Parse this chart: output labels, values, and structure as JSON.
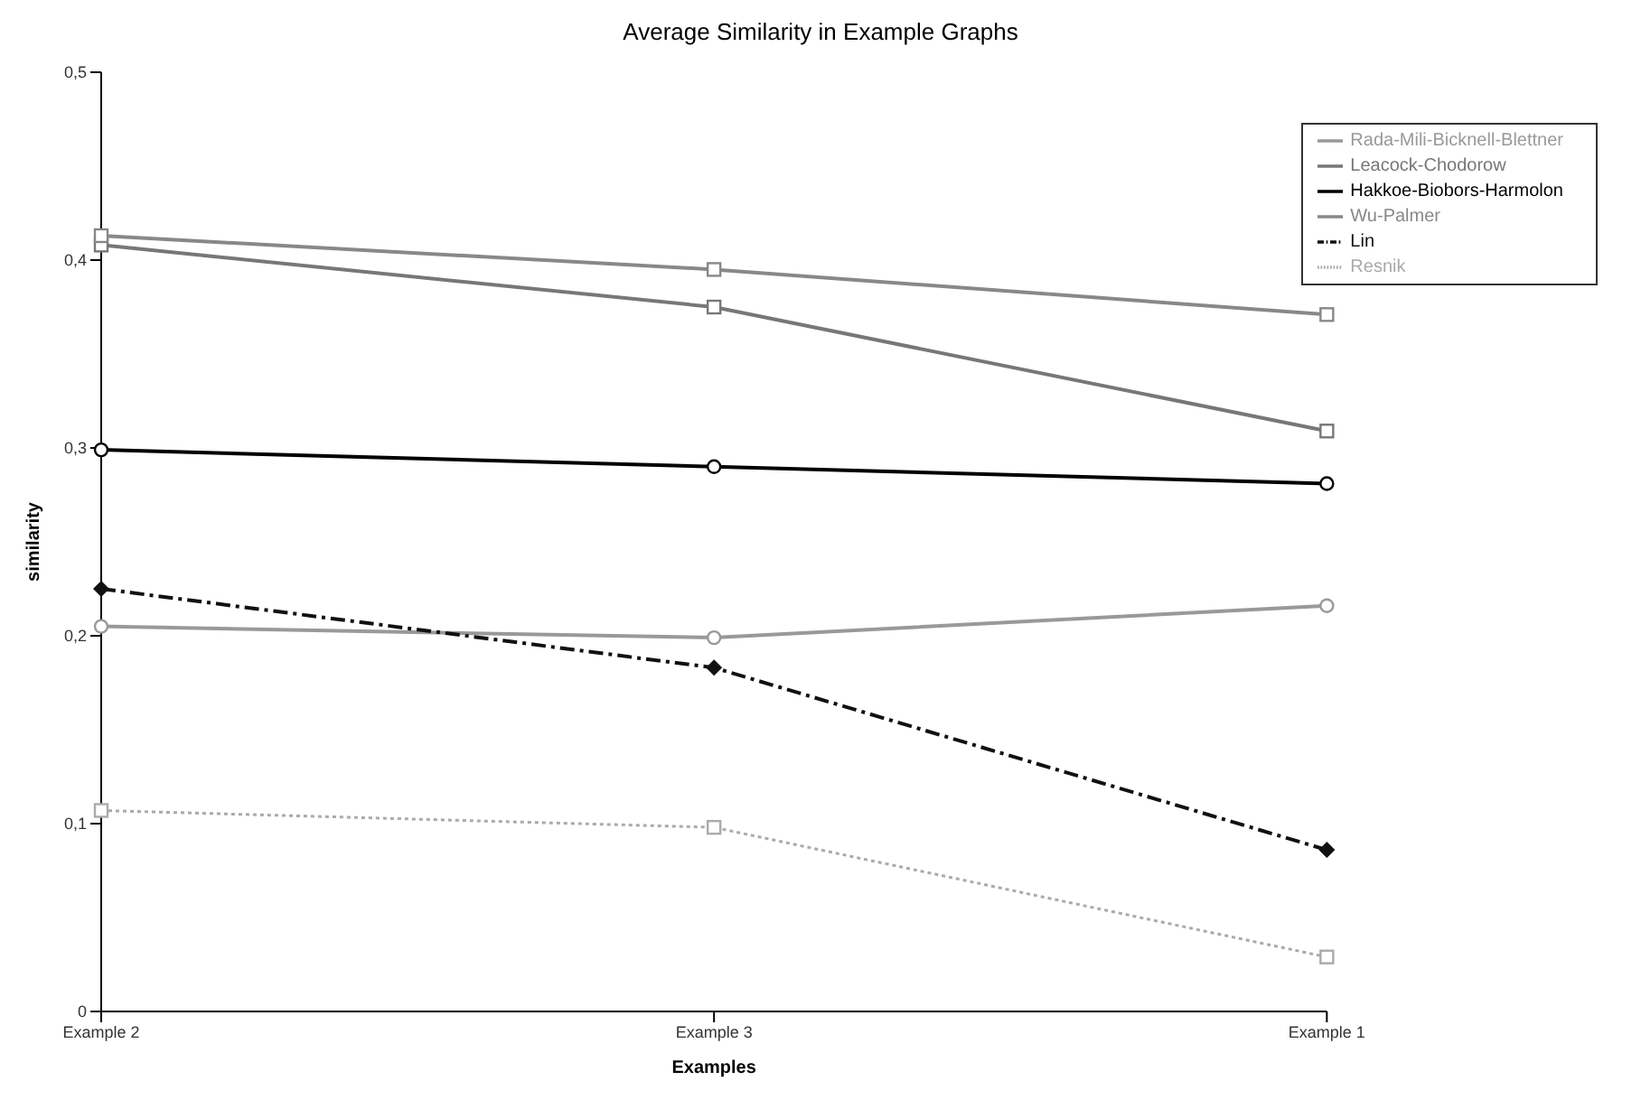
{
  "chart_data": {
    "type": "line",
    "title": "Average Similarity in Example Graphs",
    "xlabel": "Examples",
    "ylabel": "similarity",
    "categories": [
      "Example 2",
      "Example 3",
      "Example 1"
    ],
    "ylim": [
      0,
      0.5
    ],
    "yticks": [
      {
        "value": 0,
        "label": "0"
      },
      {
        "value": 0.1,
        "label": "0,1"
      },
      {
        "value": 0.2,
        "label": "0,2"
      },
      {
        "value": 0.3,
        "label": "0,3"
      },
      {
        "value": 0.4,
        "label": "0,4"
      },
      {
        "value": 0.5,
        "label": "0,5"
      }
    ],
    "grid": false,
    "legend": "top right",
    "series": [
      {
        "name": "Rada-Mili-Bicknell-Blettner",
        "color": "#999999",
        "marker": "circle",
        "line_style": "solid",
        "values": [
          0.205,
          0.199,
          0.216
        ]
      },
      {
        "name": "Leacock-Chodorow",
        "color": "#777777",
        "marker": "square",
        "line_style": "solid",
        "values": [
          0.408,
          0.375,
          0.309
        ]
      },
      {
        "name": "Hakkoe-Biobors-Harmolon",
        "color": "#000000",
        "marker": "circle",
        "line_style": "solid",
        "values": [
          0.299,
          0.29,
          0.281
        ]
      },
      {
        "name": "Wu-Palmer",
        "color": "#888888",
        "marker": "square",
        "line_style": "solid",
        "values": [
          0.413,
          0.395,
          0.371
        ]
      },
      {
        "name": "Lin",
        "color": "#111111",
        "marker": "diamond",
        "line_style": "dashed",
        "values": [
          0.225,
          0.183,
          0.086
        ]
      },
      {
        "name": "Resnik",
        "color": "#aaaaaa",
        "marker": "square",
        "line_style": "dotted",
        "values": [
          0.107,
          0.098,
          0.029
        ]
      }
    ]
  }
}
